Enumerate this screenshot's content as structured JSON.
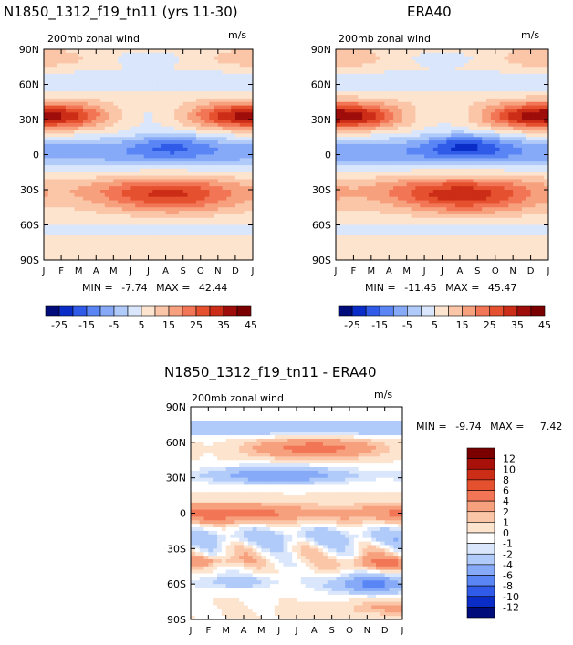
{
  "chart_data": [
    {
      "type": "heatmap",
      "title": "N1850_1312_f19_tn11 (yrs 11-30)",
      "subtitle": "200mb zonal wind",
      "units": "m/s",
      "x": [
        "J",
        "F",
        "M",
        "A",
        "M",
        "J",
        "J",
        "A",
        "S",
        "O",
        "N",
        "D",
        "J"
      ],
      "y_ticks": [
        "90N",
        "60N",
        "30N",
        "0",
        "30S",
        "60S",
        "90S"
      ],
      "min_label": "MIN =",
      "min": "-7.74",
      "max_label": "MAX =",
      "max": "42.44",
      "colorbar_labels": [
        "-25",
        "-15",
        "-5",
        "5",
        "15",
        "25",
        "35",
        "45"
      ],
      "features": [
        {
          "desc": "NH subtropical jet core",
          "lat": 30,
          "month": 1,
          "peak": 42
        },
        {
          "desc": "SH subtropical jet core",
          "lat": -30,
          "month": 7.5,
          "peak": 40
        },
        {
          "desc": "tropical easterlies",
          "lat": 8,
          "month": 7.5,
          "peak": -7
        }
      ]
    },
    {
      "type": "heatmap",
      "title": "ERA40",
      "subtitle": "200mb zonal wind",
      "units": "m/s",
      "x": [
        "J",
        "F",
        "M",
        "A",
        "M",
        "J",
        "J",
        "A",
        "S",
        "O",
        "N",
        "D",
        "J"
      ],
      "y_ticks": [
        "90N",
        "60N",
        "30N",
        "0",
        "30S",
        "60S",
        "90S"
      ],
      "min_label": "MIN =",
      "min": "-11.45",
      "max_label": "MAX =",
      "max": "45.47",
      "colorbar_labels": [
        "-25",
        "-15",
        "-5",
        "5",
        "15",
        "25",
        "35",
        "45"
      ],
      "features": [
        {
          "desc": "NH subtropical jet core",
          "lat": 30,
          "month": 1,
          "peak": 45
        },
        {
          "desc": "SH subtropical jet core",
          "lat": -30,
          "month": 7.5,
          "peak": 42
        },
        {
          "desc": "tropical easterlies",
          "lat": 8,
          "month": 7.5,
          "peak": -11
        }
      ]
    },
    {
      "type": "heatmap",
      "title": "N1850_1312_f19_tn11 - ERA40",
      "subtitle": "200mb zonal wind",
      "units": "m/s",
      "x": [
        "J",
        "F",
        "M",
        "A",
        "M",
        "J",
        "J",
        "A",
        "S",
        "O",
        "N",
        "D",
        "J"
      ],
      "y_ticks": [
        "90N",
        "60N",
        "30N",
        "0",
        "30S",
        "60S",
        "90S"
      ],
      "min_label": "MIN =",
      "min": "-9.74",
      "max_label": "MAX =",
      "max": "7.42",
      "colorbar_labels": [
        "12",
        "10",
        "8",
        "6",
        "4",
        "2",
        "1",
        "0",
        "-1",
        "-2",
        "-4",
        "-6",
        "-8",
        "-10",
        "-12"
      ]
    }
  ],
  "colors": {
    "seq_colorbar": [
      "#000c7a",
      "#0a2dc8",
      "#2f5be8",
      "#5a86f5",
      "#86aaf7",
      "#b0caf9",
      "#d9e6fb",
      "#fde4cf",
      "#fbc6a8",
      "#f7a07d",
      "#f27656",
      "#e5502f",
      "#cc2d16",
      "#9e0d0a",
      "#7a0000"
    ],
    "diff_colorbar": [
      "#7a0000",
      "#a8100a",
      "#cc2d16",
      "#e5502f",
      "#f27656",
      "#f7a07d",
      "#fbc6a8",
      "#fde4cf",
      "#ffffff",
      "#d9e6fb",
      "#b0caf9",
      "#86aaf7",
      "#5a86f5",
      "#2f5be8",
      "#0a2dc8",
      "#000c7a"
    ]
  }
}
